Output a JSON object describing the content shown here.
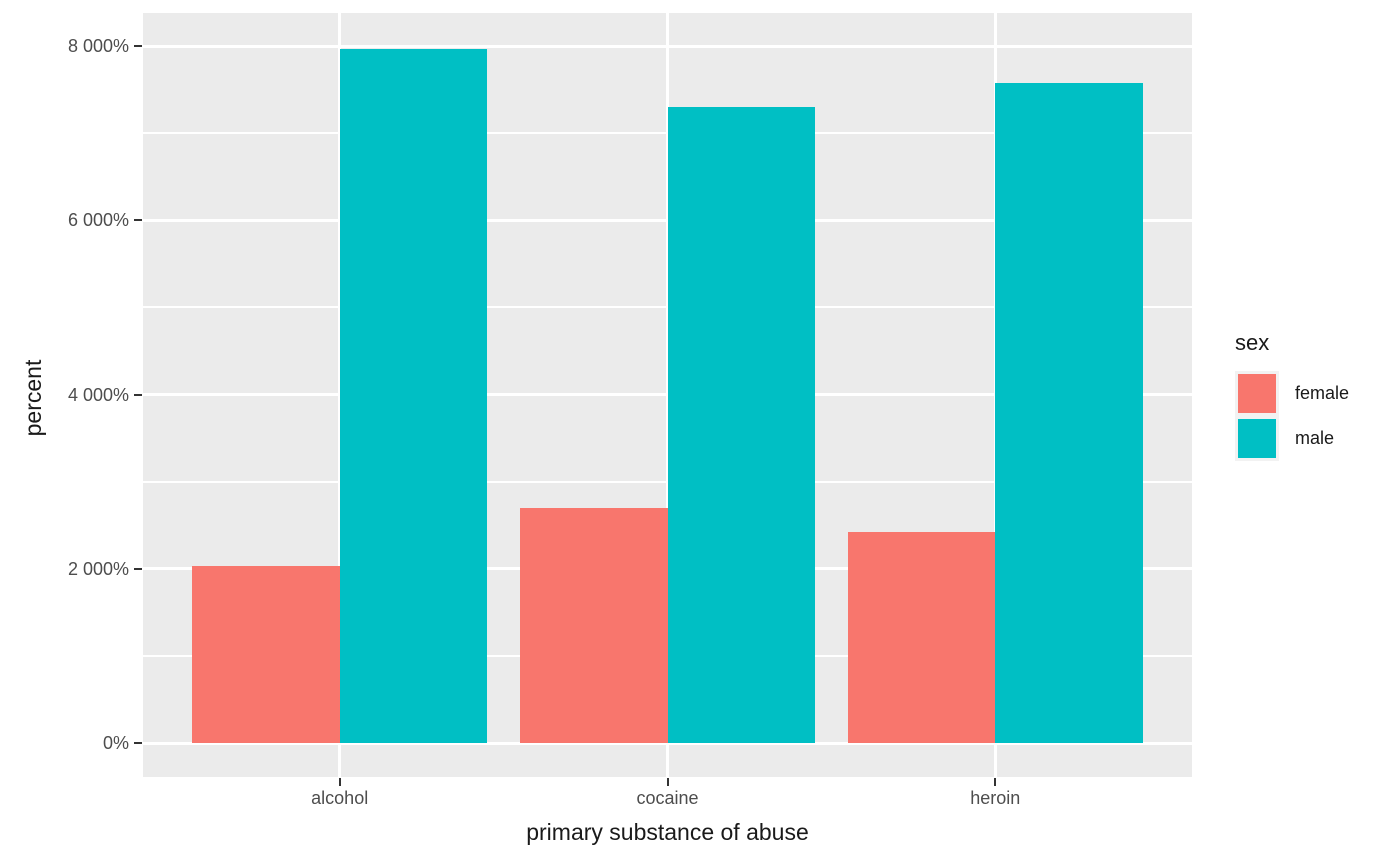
{
  "chart_data": {
    "type": "bar",
    "title": "",
    "xlabel": "primary substance of abuse",
    "ylabel": "percent",
    "categories": [
      "alcohol",
      "cocaine",
      "heroin"
    ],
    "series": [
      {
        "name": "female",
        "color": "#F8766D",
        "values": [
          2030,
          2700,
          2420
        ]
      },
      {
        "name": "male",
        "color": "#00BFC4",
        "values": [
          7970,
          7300,
          7580
        ]
      }
    ],
    "ylim": [
      0,
      8000
    ],
    "y_ticks": [
      {
        "value": 0,
        "label": "0%"
      },
      {
        "value": 2000,
        "label": "2 000%"
      },
      {
        "value": 4000,
        "label": "4 000%"
      },
      {
        "value": 6000,
        "label": "6 000%"
      },
      {
        "value": 8000,
        "label": "8 000%"
      }
    ],
    "y_minor_ticks": [
      1000,
      3000,
      5000,
      7000
    ],
    "grid": "on",
    "legend_position": "right",
    "bar_layout": "dodged"
  },
  "legend": {
    "title": "sex",
    "items": [
      {
        "label": "female",
        "color": "#F8766D"
      },
      {
        "label": "male",
        "color": "#00BFC4"
      }
    ]
  },
  "colors": {
    "panel_background": "#EBEBEB",
    "gridline": "#FFFFFF",
    "tick_label": "#4D4D4D",
    "axis_title": "#1A1A1A",
    "tick_mark": "#333333",
    "page_background": "#FFFFFF"
  }
}
